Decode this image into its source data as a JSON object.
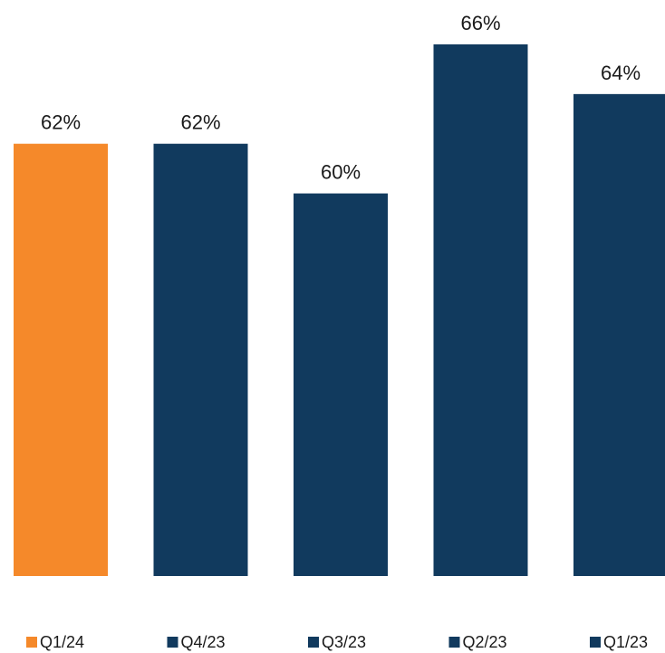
{
  "chart_data": {
    "type": "bar",
    "categories": [
      "Q1/24",
      "Q4/23",
      "Q3/23",
      "Q2/23",
      "Q1/23"
    ],
    "values": [
      62,
      62,
      60,
      66,
      64
    ],
    "value_labels": [
      "62%",
      "62%",
      "60%",
      "66%",
      "64%"
    ],
    "unit": "%",
    "colors": [
      "#F5892A",
      "#113A5E",
      "#113A5E",
      "#113A5E",
      "#113A5E"
    ],
    "title": "",
    "xlabel": "",
    "ylabel": "",
    "ylim": [
      44.6,
      66
    ],
    "grid": false,
    "legend_placement": "bottom"
  }
}
